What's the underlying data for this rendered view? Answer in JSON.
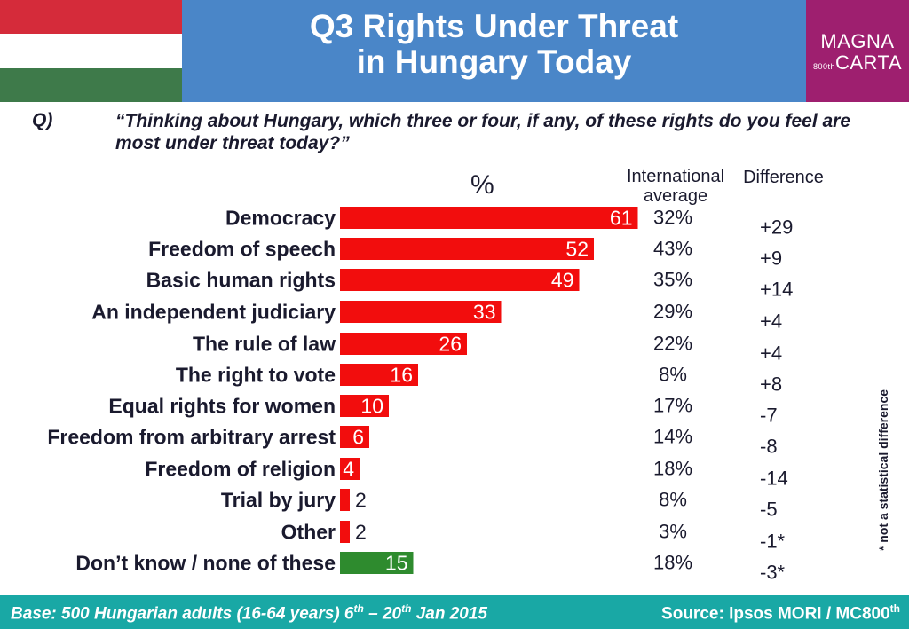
{
  "header": {
    "title_line1": "Q3 Rights Under Threat",
    "title_line2": "in Hungary Today",
    "logo_line1": "MAGNA",
    "logo_line2": "CARTA",
    "logo_small": "800th"
  },
  "question": {
    "label": "Q)",
    "text": "“Thinking about Hungary, which three or four, if any, of these rights do you feel are most under threat today?”"
  },
  "columns": {
    "percent": "%",
    "international_line1": "International",
    "international_line2": "average",
    "difference": "Difference"
  },
  "note": "* not a statistical difference",
  "footer": {
    "base_prefix": "Base: 500 Hungarian adults (16-64 years) 6",
    "base_sup1": "th",
    "base_mid": " – 20",
    "base_sup2": "th",
    "base_suffix": " Jan 2015",
    "source_prefix": "Source: Ipsos MORI / MC800",
    "source_sup": "th"
  },
  "chart_data": {
    "type": "bar",
    "orientation": "horizontal",
    "categories": [
      "Democracy",
      "Freedom of speech",
      "Basic human rights",
      "An independent judiciary",
      "The rule of law",
      "The right to vote",
      "Equal rights for women",
      "Freedom from arbitrary arrest",
      "Freedom of religion",
      "Trial by jury",
      "Other",
      "Don’t know / none of these"
    ],
    "values": [
      61,
      52,
      49,
      33,
      26,
      16,
      10,
      6,
      4,
      2,
      2,
      15
    ],
    "international_average": [
      "32%",
      "43%",
      "35%",
      "29%",
      "22%",
      "8%",
      "17%",
      "14%",
      "18%",
      "8%",
      "3%",
      "18%"
    ],
    "difference": [
      "+29",
      "+9",
      "+14",
      "+4",
      "+4",
      "+8",
      "-7",
      "-8",
      "-14",
      "-5",
      "-1*",
      "-3*"
    ],
    "colors": {
      "bar": "#f20d0d",
      "dont_know": "#2e8b2e",
      "label_inside": "#ffffff",
      "label_outside": "#1a1a2e"
    },
    "xlim": [
      0,
      61
    ]
  }
}
